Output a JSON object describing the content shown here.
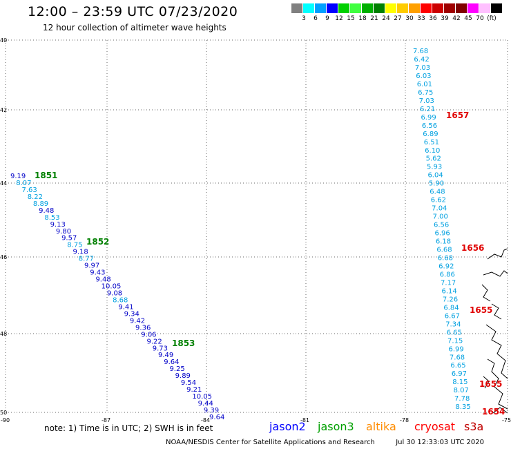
{
  "title": "12:00 – 23:59 UTC 07/23/2020",
  "subtitle": "12 hour collection of altimeter wave heights",
  "legend": {
    "unit": "(ft)",
    "colors": [
      "#808080",
      "#00ffff",
      "#00a0ff",
      "#0000ff",
      "#00d000",
      "#40ff40",
      "#00b000",
      "#008000",
      "#ffff00",
      "#ffcc00",
      "#ffa000",
      "#ff0000",
      "#cc0000",
      "#a00000",
      "#800000",
      "#ff00ff",
      "#ffc0ff",
      "#000000"
    ],
    "labels": [
      "3",
      "6",
      "9",
      "12",
      "15",
      "18",
      "21",
      "24",
      "27",
      "30",
      "33",
      "36",
      "39",
      "42",
      "45",
      "70"
    ]
  },
  "axes": {
    "lat_labels": [
      "40",
      "42",
      "44",
      "46",
      "48",
      "50"
    ],
    "lon_labels": [
      "-87",
      "-84",
      "-81",
      "-78",
      "-75"
    ],
    "corner_label": "-90"
  },
  "tracks": [
    {
      "satellite": "jason3",
      "points": [
        {
          "value": "9.19",
          "color": "#0000c8"
        },
        {
          "value": "8.07",
          "color": "#00a0e0"
        },
        {
          "value": "7.63",
          "color": "#00a0e0"
        },
        {
          "value": "8.22",
          "color": "#00a0e0"
        },
        {
          "value": "8.89",
          "color": "#00a0e0"
        },
        {
          "value": "9.48",
          "color": "#0000c8"
        },
        {
          "value": "8.53",
          "color": "#00a0e0"
        },
        {
          "value": "9.13",
          "color": "#0000c8"
        },
        {
          "value": "9.80",
          "color": "#0000c8"
        },
        {
          "value": "9.57",
          "color": "#0000c8"
        },
        {
          "value": "8.75",
          "color": "#00a0e0"
        },
        {
          "value": "9.18",
          "color": "#0000c8"
        },
        {
          "value": "8.77",
          "color": "#00a0e0"
        },
        {
          "value": "9.97",
          "color": "#0000c8"
        },
        {
          "value": "9.43",
          "color": "#0000c8"
        },
        {
          "value": "9.48",
          "color": "#0000c8"
        },
        {
          "value": "10.05",
          "color": "#0000c8"
        },
        {
          "value": "9.08",
          "color": "#0000c8"
        },
        {
          "value": "8.68",
          "color": "#00a0e0"
        },
        {
          "value": "9.41",
          "color": "#0000c8"
        },
        {
          "value": "9.34",
          "color": "#0000c8"
        },
        {
          "value": "9.42",
          "color": "#0000c8"
        },
        {
          "value": "9.36",
          "color": "#0000c8"
        },
        {
          "value": "9.06",
          "color": "#0000c8"
        },
        {
          "value": "9.22",
          "color": "#0000c8"
        },
        {
          "value": "9.73",
          "color": "#0000c8"
        },
        {
          "value": "9.49",
          "color": "#0000c8"
        },
        {
          "value": "9.64",
          "color": "#0000c8"
        },
        {
          "value": "9.25",
          "color": "#0000c8"
        },
        {
          "value": "9.89",
          "color": "#0000c8"
        },
        {
          "value": "9.54",
          "color": "#0000c8"
        },
        {
          "value": "9.21",
          "color": "#0000c8"
        },
        {
          "value": "10.05",
          "color": "#0000c8"
        },
        {
          "value": "9.44",
          "color": "#0000c8"
        },
        {
          "value": "9.39",
          "color": "#0000c8"
        },
        {
          "value": "9.64",
          "color": "#0000c8"
        }
      ],
      "times": [
        {
          "label": "1851",
          "color": "#008000"
        },
        {
          "label": "1852",
          "color": "#008000"
        },
        {
          "label": "1853",
          "color": "#008000"
        }
      ]
    },
    {
      "satellite": "cryosat",
      "points": [
        {
          "value": "7.68",
          "color": "#00a0e0"
        },
        {
          "value": "6.42",
          "color": "#00a0e0"
        },
        {
          "value": "7.03",
          "color": "#00a0e0"
        },
        {
          "value": "6.03",
          "color": "#00a0e0"
        },
        {
          "value": "6.01",
          "color": "#00a0e0"
        },
        {
          "value": "6.75",
          "color": "#00a0e0"
        },
        {
          "value": "7.03",
          "color": "#00a0e0"
        },
        {
          "value": "6.21",
          "color": "#00a0e0"
        },
        {
          "value": "6.99",
          "color": "#00a0e0"
        },
        {
          "value": "6.56",
          "color": "#00a0e0"
        },
        {
          "value": "6.89",
          "color": "#00a0e0"
        },
        {
          "value": "6.51",
          "color": "#00a0e0"
        },
        {
          "value": "6.10",
          "color": "#00a0e0"
        },
        {
          "value": "5.62",
          "color": "#00a0e0"
        },
        {
          "value": "5.93",
          "color": "#00a0e0"
        },
        {
          "value": "6.04",
          "color": "#00a0e0"
        },
        {
          "value": "5.90",
          "color": "#00a0e0"
        },
        {
          "value": "6.48",
          "color": "#00a0e0"
        },
        {
          "value": "6.62",
          "color": "#00a0e0"
        },
        {
          "value": "7.04",
          "color": "#00a0e0"
        },
        {
          "value": "7.00",
          "color": "#00a0e0"
        },
        {
          "value": "6.56",
          "color": "#00a0e0"
        },
        {
          "value": "6.96",
          "color": "#00a0e0"
        },
        {
          "value": "6.18",
          "color": "#00a0e0"
        },
        {
          "value": "6.68",
          "color": "#00a0e0"
        },
        {
          "value": "6.68",
          "color": "#00a0e0"
        },
        {
          "value": "6.92",
          "color": "#00a0e0"
        },
        {
          "value": "6.86",
          "color": "#00a0e0"
        },
        {
          "value": "7.17",
          "color": "#00a0e0"
        },
        {
          "value": "6.14",
          "color": "#00a0e0"
        },
        {
          "value": "7.26",
          "color": "#00a0e0"
        },
        {
          "value": "6.84",
          "color": "#00a0e0"
        },
        {
          "value": "6.67",
          "color": "#00a0e0"
        },
        {
          "value": "7.34",
          "color": "#00a0e0"
        },
        {
          "value": "6.65",
          "color": "#00a0e0"
        },
        {
          "value": "7.15",
          "color": "#00a0e0"
        },
        {
          "value": "6.99",
          "color": "#00a0e0"
        },
        {
          "value": "7.68",
          "color": "#00a0e0"
        },
        {
          "value": "6.65",
          "color": "#00a0e0"
        },
        {
          "value": "6.97",
          "color": "#00a0e0"
        },
        {
          "value": "8.15",
          "color": "#00a0e0"
        },
        {
          "value": "8.07",
          "color": "#00a0e0"
        },
        {
          "value": "7.78",
          "color": "#00a0e0"
        },
        {
          "value": "8.35",
          "color": "#00a0e0"
        }
      ],
      "times": [
        {
          "label": "1657",
          "color": "#e00000"
        },
        {
          "label": "1656",
          "color": "#e00000"
        },
        {
          "label": "1655",
          "color": "#e00000"
        },
        {
          "label": "1655",
          "color": "#e00000"
        },
        {
          "label": "1654",
          "color": "#e00000"
        }
      ]
    }
  ],
  "note": "note: 1) Time is in UTC; 2) SWH is in feet",
  "satellites": [
    {
      "name": "jason2",
      "color": "#0000ff"
    },
    {
      "name": "jason3",
      "color": "#00a000"
    },
    {
      "name": "altika",
      "color": "#ff8c00"
    },
    {
      "name": "cryosat",
      "color": "#ff0000"
    },
    {
      "name": "s3a",
      "color": "#c00000"
    }
  ],
  "credit": "NOAA/NESDIS Center for Satellite Applications and Research",
  "timestamp": "Jul 30 12:33:03 UTC 2020"
}
